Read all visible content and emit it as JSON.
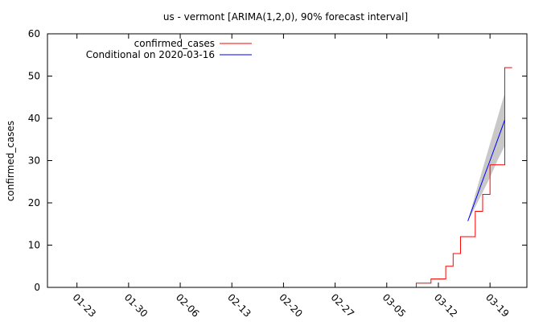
{
  "chart_data": {
    "type": "line",
    "title": "us - vermont [ARIMA(1,2,0), 90% forecast interval]",
    "xlabel": "",
    "ylabel": "confirmed_cases",
    "ylim": [
      0,
      60
    ],
    "yticks": [
      0,
      10,
      20,
      30,
      40,
      50,
      60
    ],
    "x_ticks": [
      "01-23",
      "01-30",
      "02-06",
      "02-13",
      "02-20",
      "02-27",
      "03-05",
      "03-12",
      "03-19"
    ],
    "xlim": [
      "2020-01-19",
      "2020-03-24"
    ],
    "grid": false,
    "legend_position": "top-left",
    "series": [
      {
        "name": "confirmed_cases",
        "color": "#ff0000",
        "style": "step",
        "points": [
          [
            "2020-03-08",
            0
          ],
          [
            "2020-03-09",
            1
          ],
          [
            "2020-03-10",
            1
          ],
          [
            "2020-03-11",
            2
          ],
          [
            "2020-03-12",
            2
          ],
          [
            "2020-03-13",
            5
          ],
          [
            "2020-03-14",
            8
          ],
          [
            "2020-03-15",
            12
          ],
          [
            "2020-03-16",
            12
          ],
          [
            "2020-03-17",
            18
          ],
          [
            "2020-03-18",
            22
          ],
          [
            "2020-03-19",
            29
          ],
          [
            "2020-03-20",
            29
          ],
          [
            "2020-03-21",
            52
          ],
          [
            "2020-03-22",
            52
          ]
        ]
      },
      {
        "name": "Conditional on 2020-03-16",
        "color": "#0000ff",
        "style": "line",
        "points": [
          [
            "2020-03-16",
            15.7
          ],
          [
            "2020-03-17",
            20.5
          ],
          [
            "2020-03-18",
            25.3
          ],
          [
            "2020-03-19",
            30.0
          ],
          [
            "2020-03-20",
            34.8
          ],
          [
            "2020-03-21",
            39.6
          ]
        ]
      }
    ],
    "forecast_interval": {
      "level": "90%",
      "color": "#c8c8c8",
      "points": [
        [
          "2020-03-16",
          15.7,
          15.7
        ],
        [
          "2020-03-17",
          19.0,
          22.0
        ],
        [
          "2020-03-18",
          22.5,
          28.0
        ],
        [
          "2020-03-19",
          26.0,
          34.0
        ],
        [
          "2020-03-20",
          30.0,
          40.0
        ],
        [
          "2020-03-21",
          33.5,
          46.0
        ]
      ]
    }
  }
}
